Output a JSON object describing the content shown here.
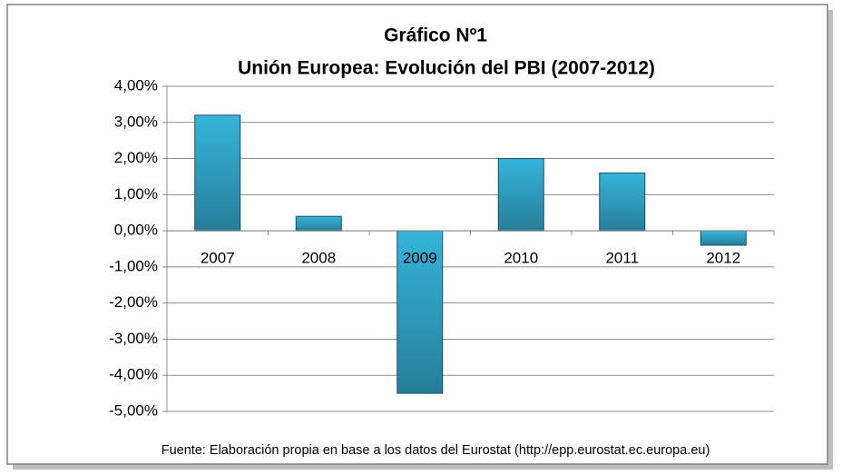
{
  "chart_data": {
    "type": "bar",
    "title": "Gráfico Nº1",
    "subtitle": "Unión Europea: Evolución del PBI (2007-2012)",
    "source": "Fuente: Elaboración propia en base a los datos del Eurostat (http://epp.eurostat.ec.europa.eu)",
    "categories": [
      "2007",
      "2008",
      "2009",
      "2010",
      "2011",
      "2012"
    ],
    "values": [
      3.2,
      0.4,
      -4.5,
      2.0,
      1.6,
      -0.4
    ],
    "color": "#36b4da",
    "ylim": [
      -5,
      4
    ],
    "yticks": [
      {
        "value": 4,
        "label": "4,00%"
      },
      {
        "value": 3,
        "label": "3,00%"
      },
      {
        "value": 2,
        "label": "2,00%"
      },
      {
        "value": 1,
        "label": "1,00%"
      },
      {
        "value": 0,
        "label": "0,00%"
      },
      {
        "value": -1,
        "label": "-1,00%"
      },
      {
        "value": -2,
        "label": "-2,00%"
      },
      {
        "value": -3,
        "label": "-3,00%"
      },
      {
        "value": -4,
        "label": "-4,00%"
      },
      {
        "value": -5,
        "label": "-5,00%"
      }
    ],
    "grid": true
  }
}
